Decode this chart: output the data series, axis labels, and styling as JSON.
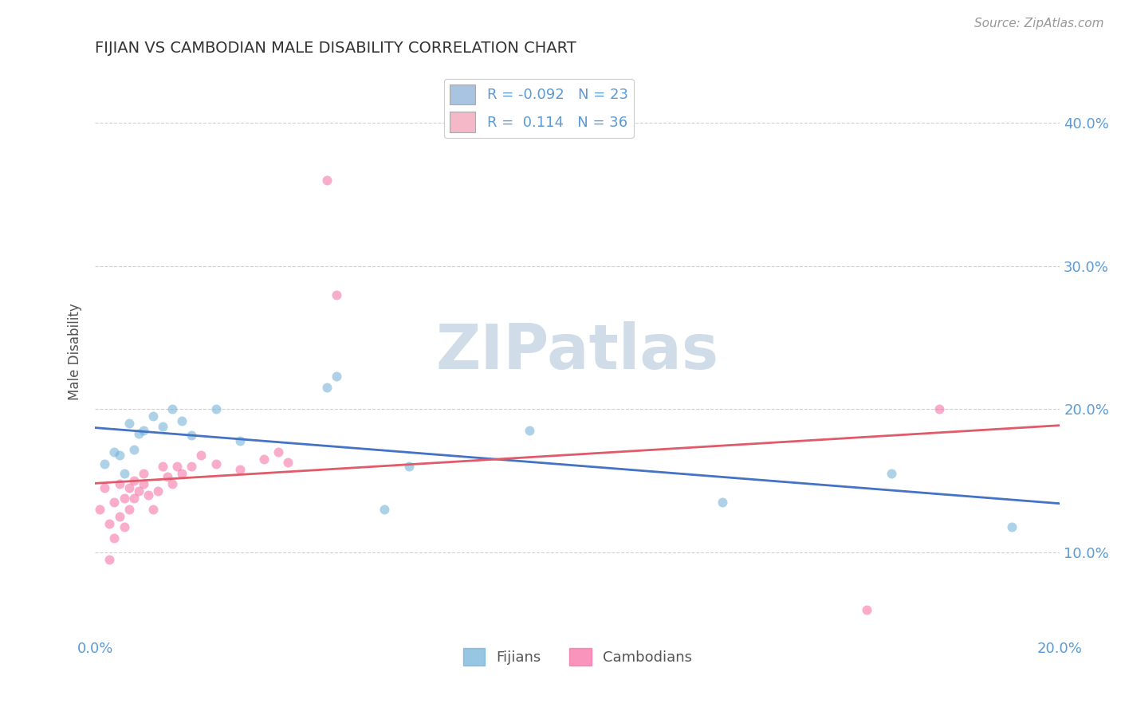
{
  "title": "FIJIAN VS CAMBODIAN MALE DISABILITY CORRELATION CHART",
  "source": "Source: ZipAtlas.com",
  "ylabel_label": "Male Disability",
  "xlim": [
    0.0,
    0.2
  ],
  "ylim": [
    0.04,
    0.44
  ],
  "fijian_x": [
    0.002,
    0.004,
    0.005,
    0.006,
    0.007,
    0.008,
    0.009,
    0.01,
    0.012,
    0.014,
    0.016,
    0.018,
    0.02,
    0.025,
    0.03,
    0.048,
    0.05,
    0.06,
    0.065,
    0.09,
    0.13,
    0.165,
    0.19
  ],
  "fijian_y": [
    0.162,
    0.17,
    0.168,
    0.155,
    0.19,
    0.172,
    0.183,
    0.185,
    0.195,
    0.188,
    0.2,
    0.192,
    0.182,
    0.2,
    0.178,
    0.215,
    0.223,
    0.13,
    0.16,
    0.185,
    0.135,
    0.155,
    0.118
  ],
  "cambodian_x": [
    0.001,
    0.002,
    0.003,
    0.003,
    0.004,
    0.004,
    0.005,
    0.005,
    0.006,
    0.006,
    0.007,
    0.007,
    0.008,
    0.008,
    0.009,
    0.01,
    0.01,
    0.011,
    0.012,
    0.013,
    0.014,
    0.015,
    0.016,
    0.017,
    0.018,
    0.02,
    0.022,
    0.025,
    0.03,
    0.035,
    0.038,
    0.04,
    0.048,
    0.05,
    0.16,
    0.175
  ],
  "cambodian_y": [
    0.13,
    0.145,
    0.095,
    0.12,
    0.135,
    0.11,
    0.148,
    0.125,
    0.138,
    0.118,
    0.145,
    0.13,
    0.15,
    0.138,
    0.143,
    0.148,
    0.155,
    0.14,
    0.13,
    0.143,
    0.16,
    0.153,
    0.148,
    0.16,
    0.155,
    0.16,
    0.168,
    0.162,
    0.158,
    0.165,
    0.17,
    0.163,
    0.36,
    0.28,
    0.06,
    0.2
  ],
  "fijian_color": "#6baed6",
  "cambodian_color": "#f768a1",
  "fijian_line_color": "#4472c4",
  "cambodian_line_color": "#e05a6a",
  "marker_alpha": 0.55,
  "marker_size": 75,
  "background_color": "#ffffff",
  "grid_color": "#cccccc",
  "watermark_text": "ZIPatlas",
  "watermark_color": "#d0dde8",
  "legend_fijian_color": "#a8c4e0",
  "legend_cambodian_color": "#f4b8c8",
  "title_fontsize": 14,
  "tick_fontsize": 13,
  "ylabel_fontsize": 12
}
